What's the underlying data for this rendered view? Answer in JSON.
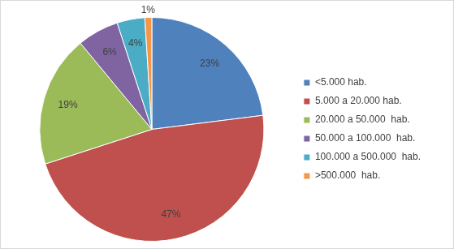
{
  "chart_data": {
    "type": "pie",
    "categories": [
      "<5.000 hab.",
      "5.000 a 20.000 hab.",
      "20.000 a 50.000  hab.",
      "50.000 a 100.000  hab.",
      "100.000 a 500.000  hab.",
      ">500.000  hab."
    ],
    "values": [
      23,
      47,
      19,
      6,
      4,
      1
    ],
    "value_labels": [
      "23%",
      "47%",
      "19%",
      "6%",
      "4%",
      "1%"
    ],
    "colors": [
      "#4f81bd",
      "#c0504d",
      "#9bbb59",
      "#8064a2",
      "#4bacc6",
      "#f79646"
    ],
    "legend": "right",
    "data_labels": true
  }
}
